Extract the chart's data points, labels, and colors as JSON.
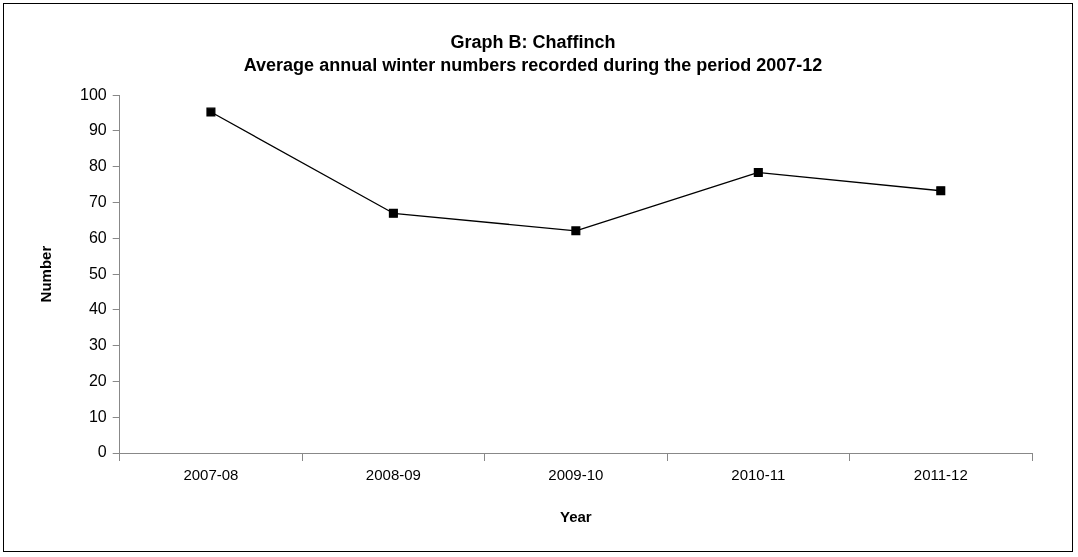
{
  "chart_data": {
    "type": "line",
    "title": "Graph B: Chaffinch",
    "subtitle": "Average annual winter numbers recorded during the period 2007-12",
    "xlabel": "Year",
    "ylabel": "Number",
    "categories": [
      "2007-08",
      "2008-09",
      "2009-10",
      "2010-11",
      "2011-12"
    ],
    "series": [
      {
        "color": "#000000",
        "values": [
          95.3,
          67,
          62.1,
          78.4,
          73.3
        ]
      }
    ],
    "ylim": [
      0,
      100
    ],
    "yticks": [
      0,
      10,
      20,
      30,
      40,
      50,
      60,
      70,
      80,
      90,
      100
    ],
    "grid": false,
    "legend": false,
    "marker": "square",
    "line_style": "solid"
  }
}
